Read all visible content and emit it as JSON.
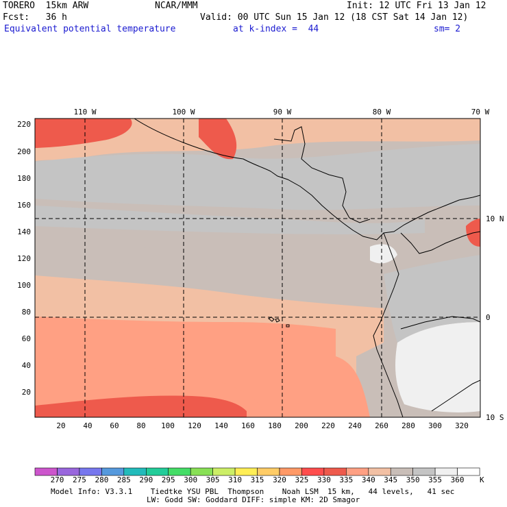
{
  "header": {
    "model": "TORERO  15km ARW",
    "center": "NCAR/MMM",
    "init": "Init: 12 UTC Fri 13 Jan 12",
    "fcst": "Fcst:   36 h",
    "valid": "Valid: 00 UTC Sun 15 Jan 12 (18 CST Sat 14 Jan 12)",
    "field": "Equivalent potential temperature",
    "level": "at k-index =  44",
    "smooth": "sm= 2"
  },
  "map": {
    "lon_labels": [
      "110 W",
      "100 W",
      "90 W",
      "80 W",
      "70 W"
    ],
    "lat_labels": [
      "10 N",
      "0",
      "10 S"
    ],
    "y_ticks": [
      "220",
      "200",
      "180",
      "160",
      "140",
      "120",
      "100",
      "80",
      "60",
      "40",
      "20"
    ],
    "x_ticks": [
      "20",
      "40",
      "60",
      "80",
      "100",
      "120",
      "140",
      "160",
      "180",
      "200",
      "220",
      "240",
      "260",
      "280",
      "300",
      "320"
    ]
  },
  "colorbar": {
    "values": [
      "270",
      "275",
      "280",
      "285",
      "290",
      "295",
      "300",
      "305",
      "310",
      "315",
      "320",
      "325",
      "330",
      "335",
      "340",
      "345",
      "350",
      "355",
      "360"
    ],
    "unit": "K",
    "colors": [
      "#cc55cc",
      "#9966dd",
      "#7777ee",
      "#5599dd",
      "#22bbbb",
      "#22cc99",
      "#44dd66",
      "#88e055",
      "#ccee66",
      "#ffee55",
      "#ffcc66",
      "#ff9966",
      "#ff4d4d",
      "#ee5a4c",
      "#ffa083",
      "#f2c0a4",
      "#c9beb8",
      "#c4c4c4",
      "#f0f0f0",
      "#ffffff"
    ]
  },
  "footer": {
    "line1": "Model Info: V3.3.1    Tiedtke YSU PBL  Thompson    Noah LSM  15 km,   44 levels,   41 sec",
    "line2": "LW: Godd SW: Goddard DIFF: simple KM: 2D Smagor"
  }
}
